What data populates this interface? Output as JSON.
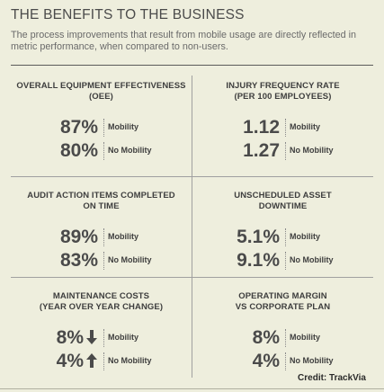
{
  "header": {
    "title": "THE BENEFITS TO THE BUSINESS",
    "subtitle": "The process improvements that result from mobile usage are directly reflected in metric performance, when compared to non-users."
  },
  "metrics": [
    {
      "heading": "OVERALL EQUIPMENT EFFECTIVENESS\n(OEE)",
      "mobility_value": "87%",
      "mobility_label": "Mobility",
      "no_mobility_value": "80%",
      "no_mobility_label": "No Mobility"
    },
    {
      "heading": "INJURY FREQUENCY RATE\n(PER 100 EMPLOYEES)",
      "mobility_value": "1.12",
      "mobility_label": "Mobility",
      "no_mobility_value": "1.27",
      "no_mobility_label": "No Mobility"
    },
    {
      "heading": "AUDIT ACTION ITEMS COMPLETED\nON TIME",
      "mobility_value": "89%",
      "mobility_label": "Mobility",
      "no_mobility_value": "83%",
      "no_mobility_label": "No Mobility"
    },
    {
      "heading": "UNSCHEDULED ASSET\nDOWNTIME",
      "mobility_value": "5.1%",
      "mobility_label": "Mobility",
      "no_mobility_value": "9.1%",
      "no_mobility_label": "No Mobility"
    },
    {
      "heading": "MAINTENANCE COSTS\n(YEAR OVER YEAR CHANGE)",
      "mobility_value": "8%",
      "mobility_arrow": "arrow-down-icon",
      "mobility_label": "Mobility",
      "no_mobility_value": "4%",
      "no_mobility_arrow": "arrow-up-icon",
      "no_mobility_label": "No Mobility"
    },
    {
      "heading": "OPERATING MARGIN\nVS CORPORATE PLAN",
      "mobility_value": "8%",
      "mobility_label": "Mobility",
      "no_mobility_value": "4%",
      "no_mobility_label": "No Mobility"
    }
  ],
  "credit": "Credit: TrackVia",
  "colors": {
    "background": "#eeeedd",
    "text": "#4a4a4a",
    "rule": "#5a5a5a"
  }
}
